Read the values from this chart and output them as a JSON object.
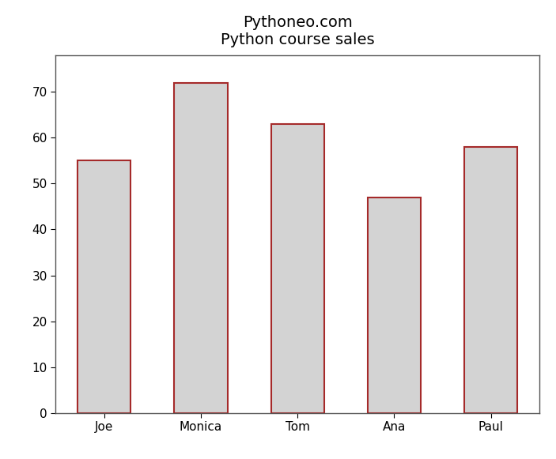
{
  "categories": [
    "Joe",
    "Monica",
    "Tom",
    "Ana",
    "Paul"
  ],
  "values": [
    55,
    72,
    63,
    47,
    58
  ],
  "bar_color": "#d3d3d3",
  "bar_edgecolor": "#a52a2a",
  "bar_linewidth": 1.5,
  "title_line1": "Pythoneo.com",
  "title_line2": "Python course sales",
  "title_fontsize": 14,
  "tick_fontsize": 11,
  "ylim": [
    0,
    78
  ],
  "yticks": [
    0,
    10,
    20,
    30,
    40,
    50,
    60,
    70
  ],
  "background_color": "#ffffff",
  "bar_width": 0.55,
  "figsize": [
    7.03,
    5.81
  ],
  "dpi": 100,
  "spine_color": "#555555",
  "spine_linewidth": 1.0
}
